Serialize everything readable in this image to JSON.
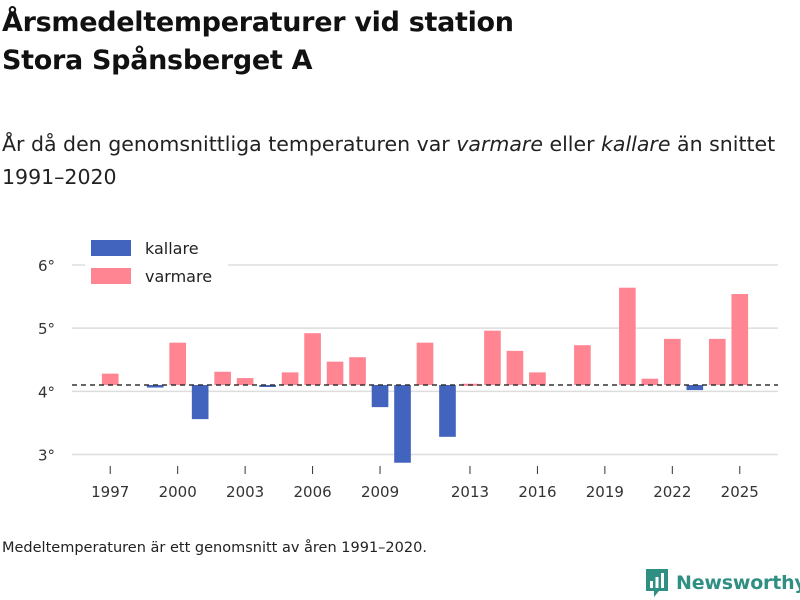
{
  "header": {
    "title_line1": "Årsmedeltemperaturer vid station",
    "title_line2": "Stora Spånsberget A",
    "subtitle_pre": "År då den genomsnittliga temperaturen var ",
    "subtitle_warm": "varmare",
    "subtitle_mid": " eller ",
    "subtitle_cold": "kallare",
    "subtitle_post": " än snittet 1991–2020"
  },
  "footer": {
    "note": "Medeltemperaturen är ett genomsnitt av åren 1991–2020.",
    "logo_text": "Newsworthy"
  },
  "colors": {
    "cold": "#4263be",
    "warm": "#ff8593",
    "grid": "#dddddd",
    "baseline": "#333333",
    "logo": "#2f8f83"
  },
  "chart_data": {
    "type": "bar",
    "baseline": 4.1,
    "ylim": [
      2.85,
      6.3
    ],
    "yticks": [
      3,
      4,
      5,
      6
    ],
    "ytick_labels": [
      "3°",
      "4°",
      "5°",
      "6°"
    ],
    "xticks": [
      1997,
      2000,
      2003,
      2006,
      2009,
      2013,
      2016,
      2019,
      2022,
      2025
    ],
    "xtick_labels": [
      "1997",
      "2000",
      "2003",
      "2006",
      "2009",
      "2013",
      "2016",
      "2019",
      "2022",
      "2025"
    ],
    "xlim": [
      1995.3,
      2026.7
    ],
    "legend": [
      {
        "key": "cold",
        "label": "kallare"
      },
      {
        "key": "warm",
        "label": "varmare"
      }
    ],
    "series": [
      {
        "year": 1997,
        "value": 4.28
      },
      {
        "year": 1999,
        "value": 4.06
      },
      {
        "year": 2000,
        "value": 4.77
      },
      {
        "year": 2001,
        "value": 3.56
      },
      {
        "year": 2002,
        "value": 4.31
      },
      {
        "year": 2003,
        "value": 4.21
      },
      {
        "year": 2004,
        "value": 4.07
      },
      {
        "year": 2005,
        "value": 4.3
      },
      {
        "year": 2006,
        "value": 4.92
      },
      {
        "year": 2007,
        "value": 4.47
      },
      {
        "year": 2008,
        "value": 4.54
      },
      {
        "year": 2009,
        "value": 3.75
      },
      {
        "year": 2010,
        "value": 2.87
      },
      {
        "year": 2011,
        "value": 4.77
      },
      {
        "year": 2012,
        "value": 3.28
      },
      {
        "year": 2013,
        "value": 4.12
      },
      {
        "year": 2014,
        "value": 4.96
      },
      {
        "year": 2015,
        "value": 4.64
      },
      {
        "year": 2016,
        "value": 4.3
      },
      {
        "year": 2018,
        "value": 4.73
      },
      {
        "year": 2020,
        "value": 5.64
      },
      {
        "year": 2021,
        "value": 4.2
      },
      {
        "year": 2022,
        "value": 4.83
      },
      {
        "year": 2023,
        "value": 4.02
      },
      {
        "year": 2024,
        "value": 4.83
      },
      {
        "year": 2025,
        "value": 5.54
      }
    ]
  }
}
